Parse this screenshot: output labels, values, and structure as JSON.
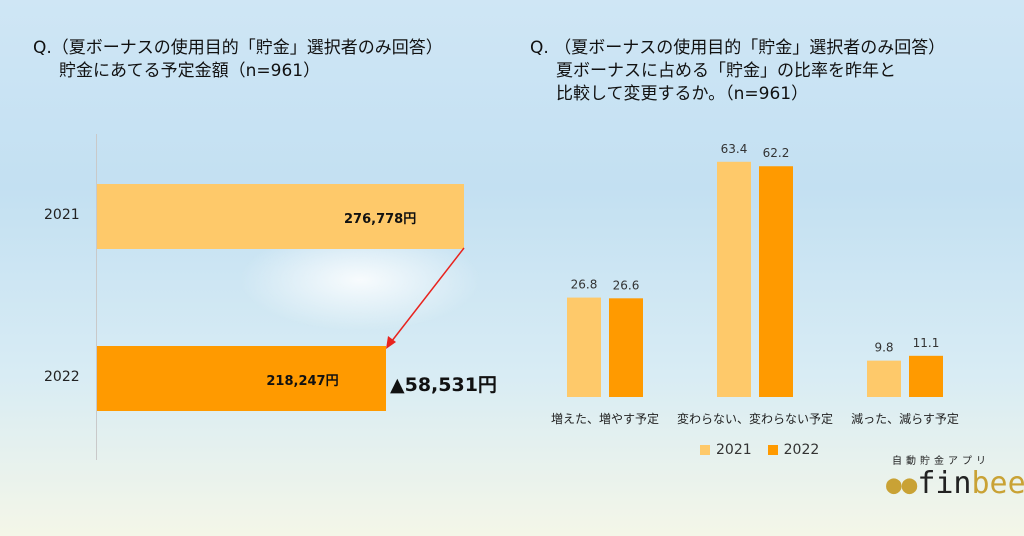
{
  "left": {
    "title_line1": "Q.（夏ボーナスの使用目的「貯金」選択者のみ回答）",
    "title_line2": "貯金にあてる予定金額（n=961）",
    "diff_label": "▲58,531円"
  },
  "right": {
    "title_line1": "Q. （夏ボーナスの使用目的「貯金」選択者のみ回答）",
    "title_line2": "夏ボーナスに占める「貯金」の比率を昨年と",
    "title_line3": "比較して変更するか。（n=961）"
  },
  "logo": {
    "sub": "自動貯金アプリ",
    "name_a": "fin",
    "name_b": "bee"
  },
  "colors": {
    "y2021": "#FEC96A",
    "y2022": "#FF9A00",
    "arrow": "#E8231E"
  },
  "chart_data": [
    {
      "type": "bar",
      "orientation": "horizontal",
      "categories": [
        "2021",
        "2022"
      ],
      "values": [
        276778,
        218247
      ],
      "value_labels": [
        "276,778円",
        "218,247円"
      ],
      "unit": "円"
    },
    {
      "type": "bar",
      "categories": [
        "増えた、増やす予定",
        "変わらない、変わらない予定",
        "減った、減らす予定"
      ],
      "series": [
        {
          "name": "2021",
          "values": [
            26.8,
            63.4,
            9.8
          ],
          "labels": [
            "26.8",
            "63.4",
            "9.8"
          ]
        },
        {
          "name": "2022",
          "values": [
            26.6,
            62.2,
            11.1
          ],
          "labels": [
            "26.6",
            "62.2",
            "11.1"
          ]
        }
      ],
      "legend": "bottom",
      "ylim": [
        0,
        70
      ]
    }
  ]
}
